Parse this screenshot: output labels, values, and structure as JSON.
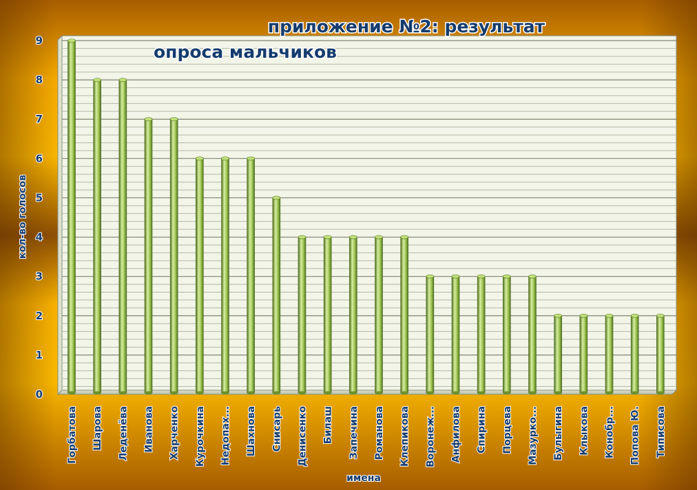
{
  "chart_data": {
    "type": "bar",
    "title_line1": "приложение №2: результат",
    "title_line2": "опроса мальчиков",
    "xlabel": "имена",
    "ylabel": "кол-во голосов",
    "ylim": [
      0,
      9
    ],
    "yticks": [
      "0",
      "1",
      "2",
      "3",
      "4",
      "5",
      "6",
      "7",
      "8",
      "9"
    ],
    "grid": true,
    "categories": [
      "Горбатова",
      "Шарова",
      "Леденёва",
      "Иванова",
      "Харченко",
      "Курочкина",
      "Недопах...",
      "Шахнова",
      "Снисарь",
      "Денисенко",
      "Билаш",
      "Запечина",
      "Романова",
      "Клепикова",
      "Воронеж...",
      "Анфилова",
      "Спирина",
      "Порцева",
      "Мазурко...",
      "Булыгина",
      "Клыкова",
      "Конобр...",
      "Попова Ю.",
      "Типисова"
    ],
    "values": [
      9,
      8,
      8,
      7,
      7,
      6,
      6,
      6,
      5,
      4,
      4,
      4,
      4,
      4,
      3,
      3,
      3,
      3,
      3,
      2,
      2,
      2,
      2,
      2
    ],
    "colors": {
      "bar_light": "#d6eea0",
      "bar_mid": "#9cc452",
      "bar_dark": "#4e6e1c",
      "plot_bg": "#f2f5e8",
      "grid": "#9aa08c",
      "text": "#163c6e"
    }
  }
}
